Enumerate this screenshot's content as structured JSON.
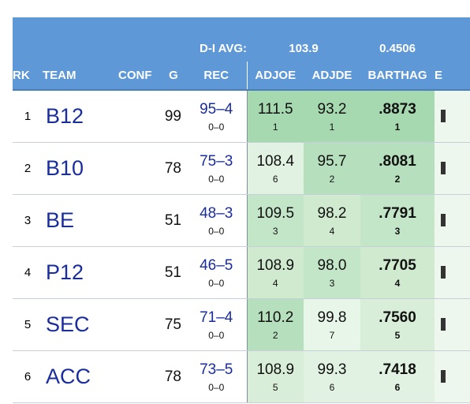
{
  "header": {
    "avg_label": "D-I AVG:",
    "avg_adjoe": "103.9",
    "avg_barthag": "0.4506",
    "columns": {
      "rk": "RK",
      "team": "TEAM",
      "conf": "CONF",
      "g": "G",
      "rec": "REC",
      "adjoe": "ADJOE",
      "adjde": "ADJDE",
      "barthag": "BARTHAG",
      "extra": "E"
    }
  },
  "colors": {
    "header_bg": "#5f98d6",
    "team_link": "#1a2d9c",
    "rank1_green": "#a7d9b0",
    "rank2_green": "#b6dfbd",
    "rank3_green": "#c3e5c8",
    "rank4_green": "#cfeacf",
    "rank5_green": "#d9eed9",
    "rank6_green": "#e1f2e2",
    "rank7_green": "#e8f5e9"
  },
  "rows": [
    {
      "rk": "1",
      "team": "B12",
      "g": "99",
      "rec": "95–4",
      "conf_rec": "0–0",
      "adjoe": "111.5",
      "adjoe_rank": "1",
      "adjde": "93.2",
      "adjde_rank": "1",
      "barthag": ".8873",
      "barthag_rank": "1"
    },
    {
      "rk": "2",
      "team": "B10",
      "g": "78",
      "rec": "75–3",
      "conf_rec": "0–0",
      "adjoe": "108.4",
      "adjoe_rank": "6",
      "adjde": "95.7",
      "adjde_rank": "2",
      "barthag": ".8081",
      "barthag_rank": "2"
    },
    {
      "rk": "3",
      "team": "BE",
      "g": "51",
      "rec": "48–3",
      "conf_rec": "0–0",
      "adjoe": "109.5",
      "adjoe_rank": "3",
      "adjde": "98.2",
      "adjde_rank": "4",
      "barthag": ".7791",
      "barthag_rank": "3"
    },
    {
      "rk": "4",
      "team": "P12",
      "g": "51",
      "rec": "46–5",
      "conf_rec": "0–0",
      "adjoe": "108.9",
      "adjoe_rank": "4",
      "adjde": "98.0",
      "adjde_rank": "3",
      "barthag": ".7705",
      "barthag_rank": "4"
    },
    {
      "rk": "5",
      "team": "SEC",
      "g": "75",
      "rec": "71–4",
      "conf_rec": "0–0",
      "adjoe": "110.2",
      "adjoe_rank": "2",
      "adjde": "99.8",
      "adjde_rank": "7",
      "barthag": ".7560",
      "barthag_rank": "5"
    },
    {
      "rk": "6",
      "team": "ACC",
      "g": "78",
      "rec": "73–5",
      "conf_rec": "0–0",
      "adjoe": "108.9",
      "adjoe_rank": "5",
      "adjde": "99.3",
      "adjde_rank": "6",
      "barthag": ".7418",
      "barthag_rank": "6"
    }
  ]
}
